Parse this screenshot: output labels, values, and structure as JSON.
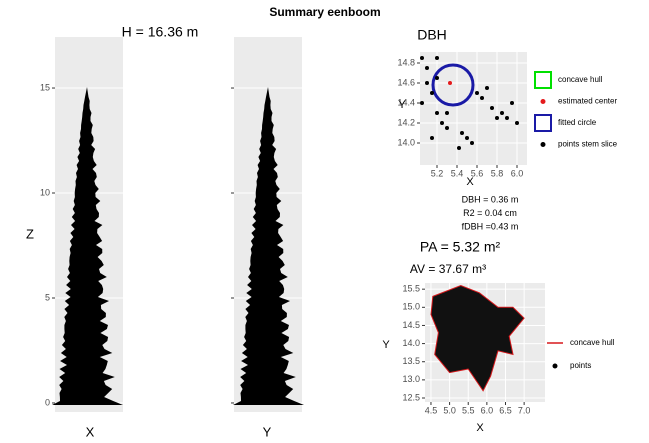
{
  "title": "Summary eenboom",
  "chart_data": [
    {
      "type": "scatter",
      "title": "H = 16.36 m",
      "xlabel": "X",
      "ylabel": "Z",
      "ylim": [
        -0.43,
        17.43
      ],
      "yticks": [
        0,
        5,
        10,
        15
      ],
      "grid": true
    },
    {
      "type": "scatter",
      "xlabel": "Y",
      "ylim": [
        -0.43,
        17.43
      ],
      "yticks": [
        0,
        5,
        10,
        15
      ],
      "grid": true
    },
    {
      "type": "scatter",
      "title": "DBH",
      "xlabel": "X",
      "ylabel": "Y",
      "xlim": [
        5.03,
        6.1
      ],
      "xticks": [
        5.2,
        5.4,
        5.6,
        5.8,
        {
          "value": 6,
          "label": "6.0"
        }
      ],
      "ylim": [
        13.78,
        14.91
      ],
      "yticks": [
        {
          "value": 14,
          "label": "14.0"
        },
        14.2,
        14.4,
        14.6,
        14.8
      ],
      "grid": true,
      "annotations": [
        "DBH = 0.36 m",
        "R2 = 0.04 cm",
        "fDBH =0.43 m"
      ],
      "series": [
        {
          "name": "concave hull",
          "color": "#00e000",
          "marker": "polygon"
        },
        {
          "name": "estimated center",
          "color": "#e41a1c",
          "marker": "point",
          "x": [
            5.33
          ],
          "values": [
            14.6
          ]
        },
        {
          "name": "fitted circle",
          "color": "#1a1aa6",
          "marker": "circle",
          "x": [
            5.36
          ],
          "values": [
            14.58
          ],
          "radius": [
            0.2
          ]
        },
        {
          "name": "points stem slice",
          "color": "#000000",
          "marker": "point",
          "x": [
            5.05,
            5.1,
            5.15,
            5.2,
            5.25,
            5.3,
            5.45,
            5.5,
            5.55,
            5.42,
            5.6,
            5.65,
            5.75,
            5.85,
            5.95,
            6.0,
            5.8,
            5.2,
            5.1,
            5.05,
            5.15,
            5.3,
            5.7,
            5.9,
            5.2
          ],
          "values": [
            14.85,
            14.75,
            14.5,
            14.3,
            14.2,
            14.15,
            14.1,
            14.05,
            14.0,
            13.95,
            14.5,
            14.45,
            14.35,
            14.3,
            14.4,
            14.2,
            14.25,
            14.85,
            14.6,
            14.4,
            14.05,
            14.3,
            14.55,
            14.25,
            14.65
          ]
        }
      ]
    },
    {
      "type": "scatter",
      "title": "PA = 5.32 m²",
      "subtitle": "AV = 37.67 m³",
      "xlabel": "X",
      "ylabel": "Y",
      "xlim": [
        4.34,
        7.56
      ],
      "xticks": [
        4.5,
        {
          "value": 5,
          "label": "5.0"
        },
        5.5,
        {
          "value": 6,
          "label": "6.0"
        },
        6.5,
        {
          "value": 7,
          "label": "7.0"
        }
      ],
      "ylim": [
        12.39,
        15.67
      ],
      "yticks": [
        12.5,
        {
          "value": 13,
          "label": "13.0"
        },
        13.5,
        {
          "value": 14,
          "label": "14.0"
        },
        14.5,
        {
          "value": 15,
          "label": "15.0"
        },
        15.5
      ],
      "grid": true,
      "series": [
        {
          "name": "concave hull",
          "color": "#d7191c",
          "marker": "line",
          "x": [
            4.55,
            5.3,
            5.8,
            6.3,
            6.7,
            7.0,
            6.6,
            6.7,
            6.3,
            6.1,
            5.9,
            5.5,
            5.0,
            4.6,
            4.7,
            4.5
          ],
          "values": [
            15.3,
            15.6,
            15.4,
            15.0,
            15.0,
            14.7,
            14.2,
            13.7,
            13.8,
            13.1,
            12.7,
            13.3,
            13.2,
            13.7,
            14.3,
            14.8
          ]
        },
        {
          "name": "points",
          "color": "#000000",
          "marker": "point"
        }
      ]
    }
  ]
}
